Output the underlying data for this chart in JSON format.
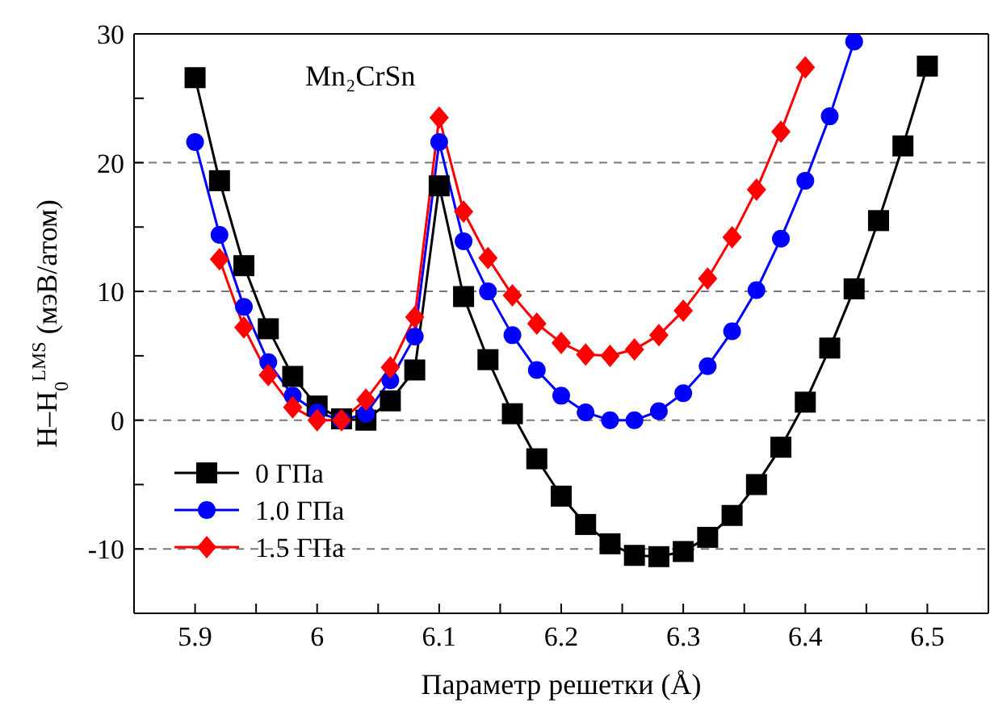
{
  "chart_data": {
    "type": "line",
    "xlabel": "Параметр решетки (Å)",
    "ylabel": "H–H$_{0}$$^{LMS}$ (мэВ/атом)",
    "annotations": [
      "Mn₂CrSn"
    ],
    "xlim": [
      5.85,
      6.55
    ],
    "xticks": [
      5.9,
      {
        "value": 5.95,
        "label": null
      },
      6.0,
      {
        "value": 6.05,
        "label": null
      },
      6.1,
      {
        "value": 6.15,
        "label": null
      },
      6.2,
      {
        "value": 6.25,
        "label": null
      },
      6.3,
      {
        "value": 6.35,
        "label": null
      },
      6.4,
      {
        "value": 6.45,
        "label": null
      },
      6.5
    ],
    "ylim": [
      -15,
      30
    ],
    "yticks": [
      -10,
      {
        "value": -5,
        "label": null
      },
      0,
      {
        "value": 5,
        "label": null
      },
      10,
      {
        "value": 15,
        "label": null
      },
      20,
      {
        "value": 25,
        "label": null
      },
      30
    ],
    "grid": "y",
    "legend": "bottom left",
    "series": [
      {
        "name": "0 ГПа",
        "color": "#000000",
        "marker": "square",
        "x": [
          5.9,
          5.92,
          5.94,
          5.96,
          5.98,
          6.0,
          6.02,
          6.04,
          6.06,
          6.08,
          6.1,
          6.12,
          6.14,
          6.16,
          6.18,
          6.2,
          6.22,
          6.24,
          6.26,
          6.28,
          6.3,
          6.32,
          6.34,
          6.36,
          6.38,
          6.4,
          6.42,
          6.44,
          6.46,
          6.48,
          6.5
        ],
        "values": [
          26.6,
          18.6,
          12.0,
          7.1,
          3.4,
          1.1,
          0.1,
          0.0,
          1.5,
          3.9,
          18.2,
          9.6,
          4.7,
          0.5,
          -3.0,
          -5.9,
          -8.1,
          -9.6,
          -10.5,
          -10.6,
          -10.2,
          -9.1,
          -7.4,
          -5.0,
          -2.1,
          1.4,
          5.6,
          10.2,
          15.5,
          21.3,
          27.5
        ]
      },
      {
        "name": "1.0 ГПа",
        "color": "#0000ff",
        "marker": "circle",
        "x": [
          5.9,
          5.92,
          5.94,
          5.96,
          5.98,
          6.0,
          6.02,
          6.04,
          6.06,
          6.08,
          6.1,
          6.12,
          6.14,
          6.16,
          6.18,
          6.2,
          6.22,
          6.24,
          6.26,
          6.28,
          6.3,
          6.32,
          6.34,
          6.36,
          6.38,
          6.4,
          6.42,
          6.44
        ],
        "values": [
          21.6,
          14.4,
          8.8,
          4.5,
          1.9,
          0.6,
          0.0,
          0.5,
          3.1,
          6.5,
          21.6,
          13.9,
          10.0,
          6.6,
          3.9,
          1.9,
          0.6,
          0.0,
          0.0,
          0.7,
          2.1,
          4.2,
          6.9,
          10.1,
          14.1,
          18.6,
          23.6,
          29.4
        ]
      },
      {
        "name": "1.5 ГПа",
        "color": "#ff0000",
        "marker": "diamond",
        "x": [
          5.92,
          5.94,
          5.96,
          5.98,
          6.0,
          6.02,
          6.04,
          6.06,
          6.08,
          6.1,
          6.12,
          6.14,
          6.16,
          6.18,
          6.2,
          6.22,
          6.24,
          6.26,
          6.28,
          6.3,
          6.32,
          6.34,
          6.36,
          6.38,
          6.4
        ],
        "values": [
          12.5,
          7.2,
          3.5,
          1.0,
          0.0,
          0.0,
          1.6,
          4.1,
          8.0,
          23.5,
          16.2,
          12.6,
          9.7,
          7.5,
          6.0,
          5.1,
          5.0,
          5.5,
          6.6,
          8.5,
          11.0,
          14.2,
          17.9,
          22.4,
          27.4
        ]
      }
    ]
  }
}
